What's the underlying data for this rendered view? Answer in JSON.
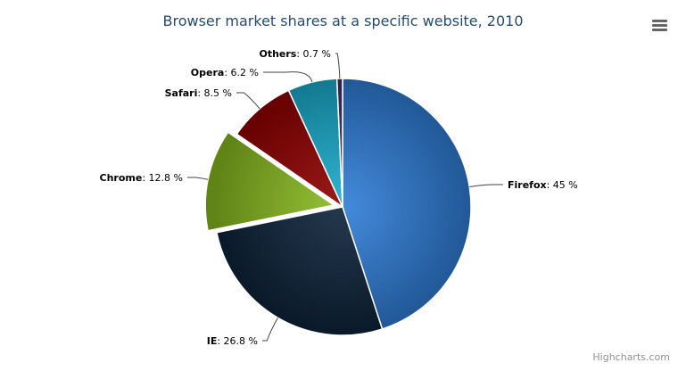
{
  "title": "Browser market shares at a specific website, 2010",
  "credits": "Highcharts.com",
  "menu_icon": "hamburger-menu-icon",
  "chart_data": {
    "type": "pie",
    "title": "Browser market shares at a specific website, 2010",
    "unit": "%",
    "slices": [
      {
        "name": "Firefox",
        "value": 45.0,
        "label": "45 %",
        "color": "#2f7ed8",
        "sliced": false
      },
      {
        "name": "IE",
        "value": 26.8,
        "label": "26.8 %",
        "color": "#0d233a",
        "sliced": false
      },
      {
        "name": "Chrome",
        "value": 12.8,
        "label": "12.8 %",
        "color": "#8bbc21",
        "sliced": true
      },
      {
        "name": "Safari",
        "value": 8.5,
        "label": "8.5 %",
        "color": "#910000",
        "sliced": false
      },
      {
        "name": "Opera",
        "value": 6.2,
        "label": "6.2 %",
        "color": "#1aadce",
        "sliced": false
      },
      {
        "name": "Others",
        "value": 0.7,
        "label": "0.7 %",
        "color": "#492970",
        "sliced": false
      }
    ]
  }
}
